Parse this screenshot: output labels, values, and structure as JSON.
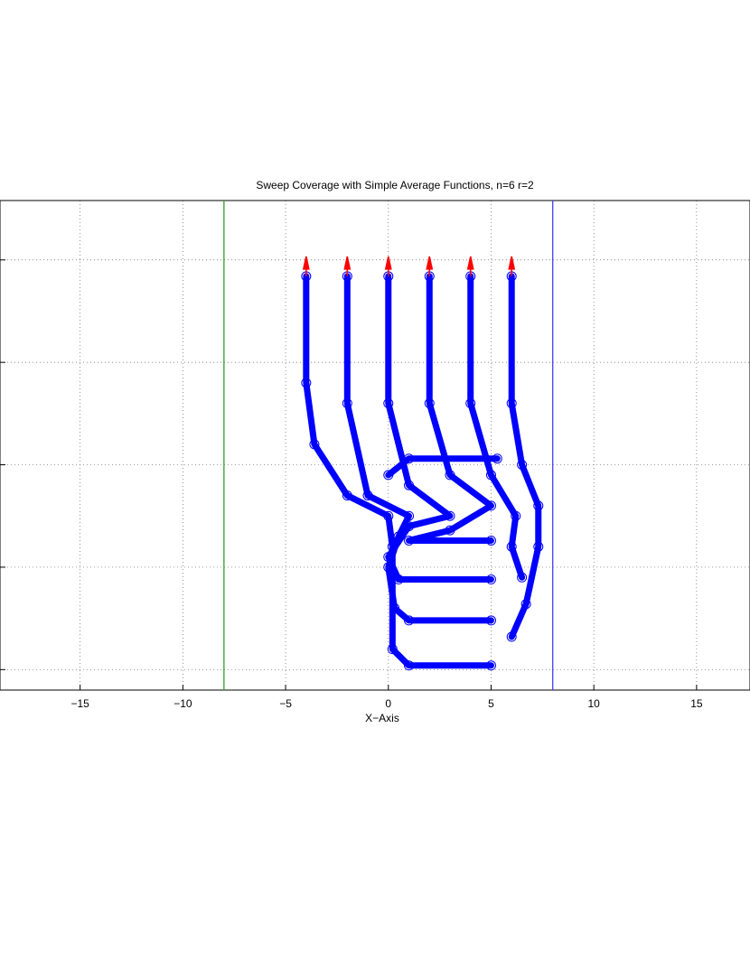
{
  "chart_data": {
    "type": "line",
    "title": "Sweep Coverage with Simple Average Functions, n=6 r=2",
    "xlabel": "X−Axis",
    "xlim": [
      -18.9,
      17.6
    ],
    "ylim": [
      -11,
      12.9
    ],
    "xticks": [
      {
        "value": -15,
        "label": "−15"
      },
      {
        "value": -10,
        "label": "−10"
      },
      {
        "value": -5,
        "label": "−5"
      },
      0,
      5,
      10,
      15
    ],
    "yticks": [
      -10,
      -5,
      0,
      5,
      10
    ],
    "grid": true,
    "vlines": [
      {
        "x": -8,
        "color": "#2ca02c"
      },
      {
        "x": 8,
        "color": "#4040ff"
      }
    ],
    "series": [
      {
        "color": "#0000ff",
        "x": [
          -4,
          -4,
          -3.6,
          -2,
          0,
          0.2,
          0.2,
          1,
          5
        ],
        "y": [
          9.2,
          4,
          1,
          -1.5,
          -2.5,
          -4,
          -9,
          -9.8,
          -9.8
        ]
      },
      {
        "color": "#0000ff",
        "x": [
          -2,
          -2,
          -1,
          1,
          0.5,
          0,
          0.3,
          1,
          5
        ],
        "y": [
          9.2,
          3,
          -1.5,
          -2.5,
          -3.5,
          -5,
          -7,
          -7.6,
          -7.6
        ]
      },
      {
        "color": "#0000ff",
        "x": [
          0,
          0,
          1,
          3,
          1,
          0,
          0.5,
          5
        ],
        "y": [
          9.2,
          3,
          -1,
          -2.5,
          -3,
          -4.5,
          -5.6,
          -5.6
        ]
      },
      {
        "color": "#0000ff",
        "x": [
          2,
          2,
          3,
          5,
          3,
          1,
          5
        ],
        "y": [
          9.2,
          3,
          -0.5,
          -2,
          -3.2,
          -3.7,
          -3.7
        ]
      },
      {
        "color": "#0000ff",
        "x": [
          4,
          4,
          5,
          6.2,
          6,
          6.5
        ],
        "y": [
          9.2,
          3,
          -0.5,
          -2.5,
          -4,
          -5.5
        ]
      },
      {
        "color": "#0000ff",
        "x": [
          6,
          6,
          6.5,
          7.3,
          7.3,
          6.7,
          6
        ],
        "y": [
          9.2,
          3,
          0,
          -2,
          -4,
          -6.8,
          -8.4
        ]
      },
      {
        "color": "#0000ff",
        "x": [
          0,
          1,
          5.3
        ],
        "y": [
          -0.5,
          0.3,
          0.3
        ]
      }
    ]
  }
}
